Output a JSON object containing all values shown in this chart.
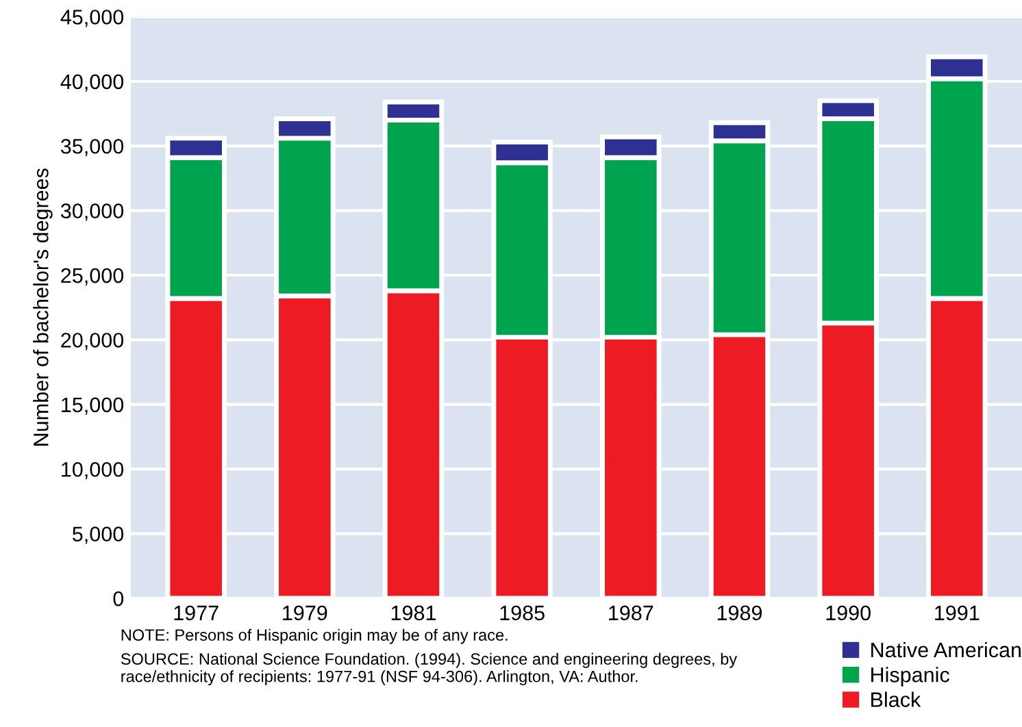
{
  "chart_data": {
    "type": "bar",
    "stacked": true,
    "ylabel": "Number of bachelor's degrees",
    "categories": [
      "1977",
      "1979",
      "1981",
      "1985",
      "1987",
      "1989",
      "1990",
      "1991"
    ],
    "series": [
      {
        "name": "Black",
        "color": "#ed1c24",
        "values": [
          23200,
          23400,
          23800,
          20200,
          20200,
          20400,
          21300,
          23200
        ]
      },
      {
        "name": "Hispanic",
        "color": "#00a34e",
        "values": [
          10900,
          12200,
          13200,
          13500,
          13900,
          15000,
          15800,
          17000
        ]
      },
      {
        "name": "Native American",
        "color": "#2e3192",
        "values": [
          1500,
          1500,
          1400,
          1600,
          1600,
          1400,
          1400,
          1700
        ]
      }
    ],
    "ylim": [
      0,
      45000
    ],
    "yticks": [
      {
        "value": 0,
        "label": "0"
      },
      {
        "value": 5000,
        "label": "5,000"
      },
      {
        "value": 10000,
        "label": "10,000"
      },
      {
        "value": 15000,
        "label": "15,000"
      },
      {
        "value": 20000,
        "label": "20,000"
      },
      {
        "value": 25000,
        "label": "25,000"
      },
      {
        "value": 30000,
        "label": "30,000"
      },
      {
        "value": 35000,
        "label": "35,000"
      },
      {
        "value": 40000,
        "label": "40,000"
      },
      {
        "value": 45000,
        "label": "45,000"
      }
    ],
    "grid": "y",
    "legend": "bottom right",
    "annotations": [
      "NOTE: Persons of Hispanic origin may be of any race.",
      "SOURCE: National Science Foundation. (1994). Science and engineering degrees, by race/ethnicity of recipients: 1977-91 (NSF 94-306). Arlington, VA: Author."
    ]
  }
}
